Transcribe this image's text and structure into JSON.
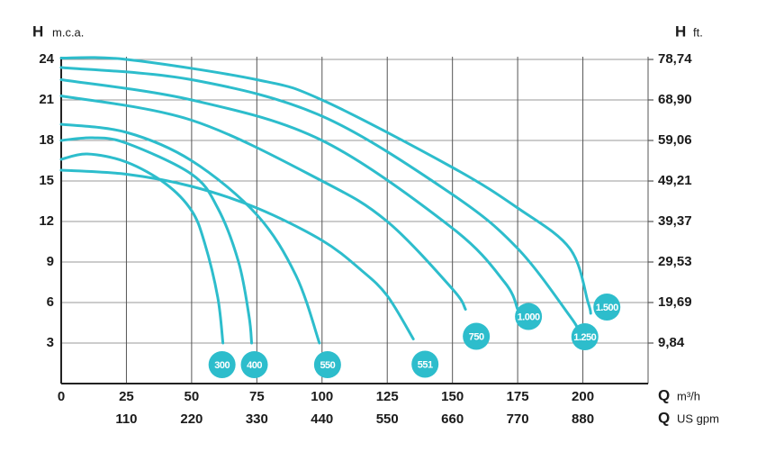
{
  "chart_data": {
    "type": "line",
    "ylabel_symbol": "H",
    "ylabel_unit": "m.c.a.",
    "y2label_symbol": "H",
    "y2label_unit": "ft.",
    "xlabel_symbol": "Q",
    "xlabel_unit": "m³/h",
    "x2label_symbol": "Q",
    "x2label_unit": "US gpm",
    "xlim": [
      0,
      225
    ],
    "xticks": [
      0,
      25,
      50,
      75,
      100,
      125,
      150,
      175,
      200
    ],
    "x2lim": [
      0,
      990
    ],
    "x2ticks": [
      110,
      220,
      330,
      440,
      550,
      660,
      770,
      880
    ],
    "ylim": [
      0,
      24.2
    ],
    "yticks": [
      3,
      6,
      9,
      12,
      15,
      18,
      21,
      24
    ],
    "y2lim": [
      0,
      79.4
    ],
    "y2ticks": [
      {
        "value": 9.84,
        "label": "9,84"
      },
      {
        "value": 19.69,
        "label": "19,69"
      },
      {
        "value": 29.53,
        "label": "29,53"
      },
      {
        "value": 39.37,
        "label": "39,37"
      },
      {
        "value": 49.21,
        "label": "49,21"
      },
      {
        "value": 59.06,
        "label": "59,06"
      },
      {
        "value": 68.9,
        "label": "68,90"
      },
      {
        "value": 78.74,
        "label": "78,74"
      }
    ],
    "grid": true,
    "series": [
      {
        "name": "300",
        "color": "#2dbdcc",
        "x": [
          0,
          10,
          25,
          40,
          50,
          55,
          60,
          62
        ],
        "values": [
          16.6,
          17.0,
          16.4,
          14.8,
          12.8,
          10.4,
          6.4,
          3.0
        ]
      },
      {
        "name": "400",
        "color": "#2dbdcc",
        "x": [
          0,
          12,
          25,
          50,
          60,
          68,
          72,
          73
        ],
        "values": [
          18.0,
          18.2,
          17.8,
          15.5,
          13.0,
          9.0,
          5.0,
          3.0
        ]
      },
      {
        "name": "550",
        "color": "#2dbdcc",
        "x": [
          0,
          25,
          50,
          75,
          90,
          99
        ],
        "values": [
          19.2,
          18.6,
          16.5,
          12.5,
          8.0,
          3.0
        ]
      },
      {
        "name": "551",
        "color": "#2dbdcc",
        "x": [
          0,
          25,
          50,
          75,
          100,
          115,
          125,
          135
        ],
        "values": [
          15.8,
          15.5,
          14.6,
          13.0,
          10.6,
          8.4,
          6.5,
          3.3
        ]
      },
      {
        "name": "750",
        "color": "#2dbdcc",
        "x": [
          0,
          50,
          100,
          125,
          150,
          155
        ],
        "values": [
          21.3,
          19.5,
          15.0,
          12.0,
          7.0,
          5.5
        ]
      },
      {
        "name": "1.000",
        "color": "#2dbdcc",
        "x": [
          0,
          50,
          100,
          150,
          170,
          175
        ],
        "values": [
          22.5,
          21.0,
          18.0,
          11.5,
          7.5,
          5.5
        ]
      },
      {
        "name": "1.250",
        "color": "#2dbdcc",
        "x": [
          0,
          50,
          100,
          150,
          175,
          195,
          198
        ],
        "values": [
          23.4,
          22.5,
          19.8,
          14.0,
          10.0,
          5.0,
          4.0
        ]
      },
      {
        "name": "1.500",
        "color": "#2dbdcc",
        "x": [
          0,
          25,
          75,
          100,
          150,
          175,
          195,
          202,
          203
        ],
        "values": [
          24.1,
          24.0,
          22.5,
          21.0,
          16.0,
          13.0,
          10.0,
          6.0,
          5.2
        ]
      }
    ]
  }
}
